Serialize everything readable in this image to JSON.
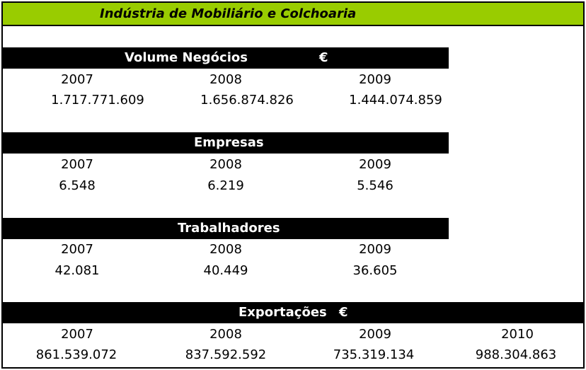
{
  "title": "Indústria de Mobiliário e Colchoaria",
  "sections": [
    {
      "label": "Volume Negócios",
      "currency": "€",
      "years": [
        "2007",
        "2008",
        "2009"
      ],
      "values": [
        "1.717.771.609",
        "1.656.874.826",
        "1.444.074.859"
      ]
    },
    {
      "label": "Empresas",
      "currency": "",
      "years": [
        "2007",
        "2008",
        "2009"
      ],
      "values": [
        "6.548",
        "6.219",
        "5.546"
      ]
    },
    {
      "label": "Trabalhadores",
      "currency": "",
      "years": [
        "2007",
        "2008",
        "2009"
      ],
      "values": [
        "42.081",
        "40.449",
        "36.605"
      ]
    },
    {
      "label": "Exportações",
      "currency": "€",
      "years": [
        "2007",
        "2008",
        "2009",
        "2010"
      ],
      "values": [
        "861.539.072",
        "837.592.592",
        "735.319.134",
        "988.304.863"
      ]
    }
  ]
}
